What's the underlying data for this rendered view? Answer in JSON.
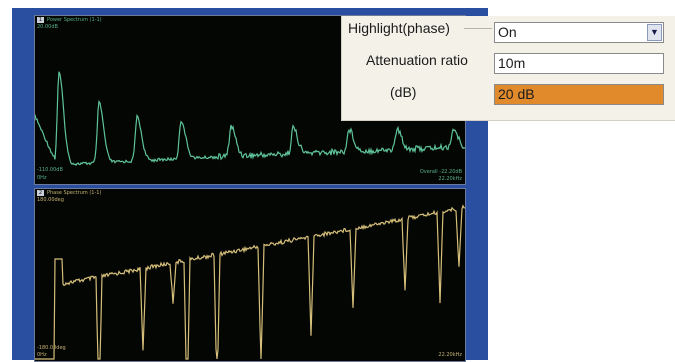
{
  "top_pane": {
    "number": "1",
    "title": "Power Spectrum (1-1)",
    "scale_top": "20.00dB",
    "scale_bottom": "-110.00dB",
    "x_start": "0Hz",
    "overall": "Overall -22.20dB",
    "x_end": "22.20kHz",
    "trace_color": "#5fc49a"
  },
  "bottom_pane": {
    "number": "2",
    "title": "Phase Spectrum (1-1)",
    "scale_top": "180.00deg",
    "scale_bottom": "-180.00deg",
    "x_start": "0Hz",
    "x_end": "22.20kHz",
    "trace_color": "#d6bf7a"
  },
  "dialog": {
    "highlight_label": "Highlight(phase)",
    "highlight_value": "On",
    "attenuation_label": "Attenuation ratio",
    "attenuation_value": "10m",
    "db_label": "(dB)",
    "db_value": "20 dB",
    "db_highlight_color": "#e08a2c"
  }
}
